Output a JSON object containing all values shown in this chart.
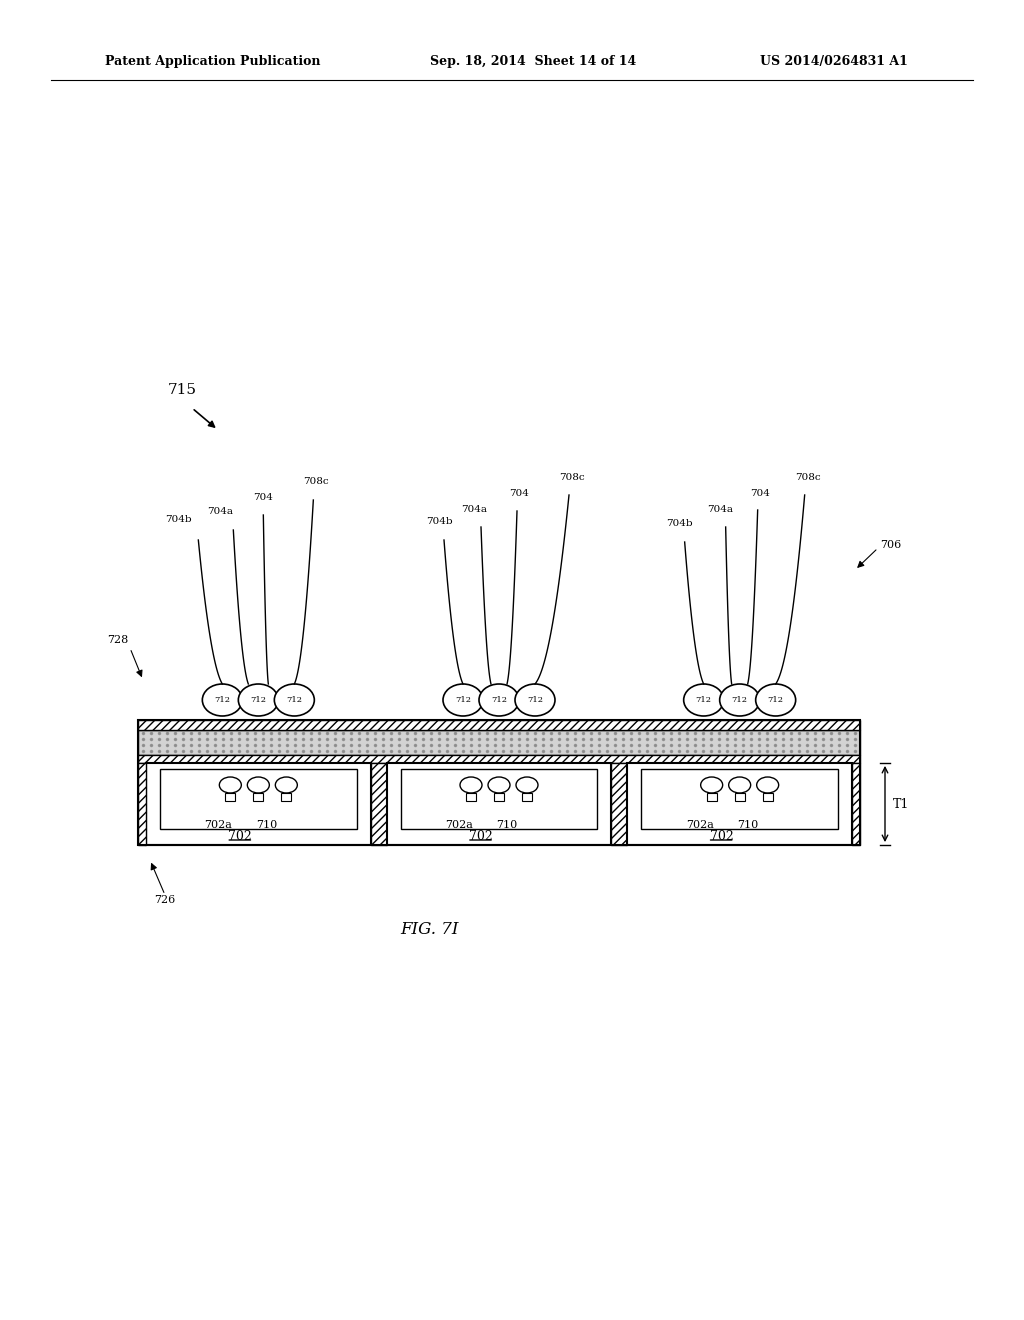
{
  "title_left": "Patent Application Publication",
  "title_mid": "Sep. 18, 2014  Sheet 14 of 14",
  "title_right": "US 2014/0264831 A1",
  "fig_label": "FIG. 7I",
  "bg_color": "#ffffff",
  "label_715": "715",
  "label_728": "728",
  "label_726": "726",
  "label_706": "706",
  "label_T1": "T1"
}
